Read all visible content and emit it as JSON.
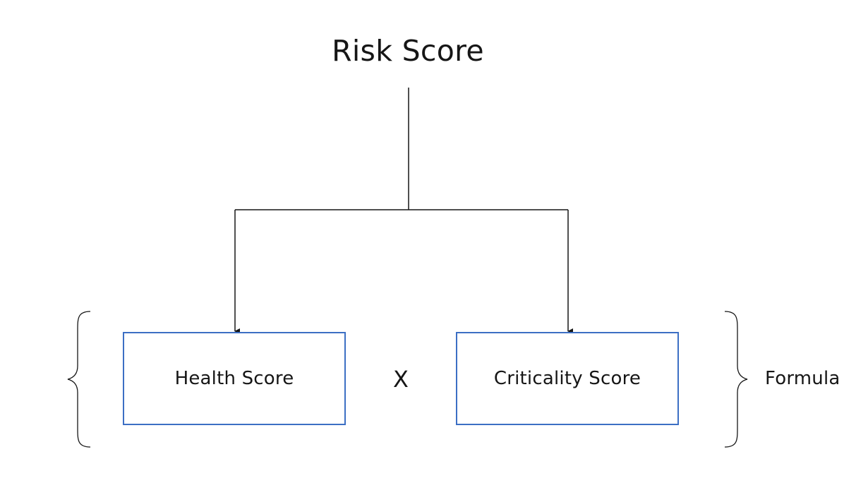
{
  "diagram": {
    "title": "Risk Score",
    "left_box": {
      "label": "Health Score"
    },
    "right_box": {
      "label": "Criticality Score"
    },
    "operator": "X",
    "brace_label": "Formula"
  },
  "colors": {
    "box_border": "#3c6fc4",
    "text": "#161616",
    "lines": "#161616",
    "background": "#ffffff"
  }
}
